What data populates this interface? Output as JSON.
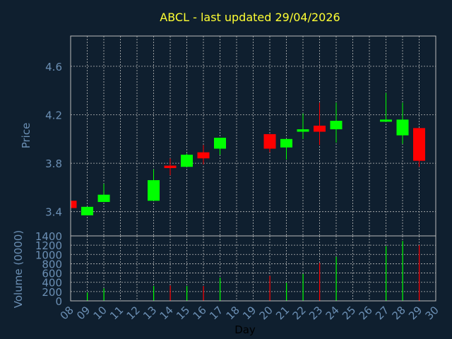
{
  "chart_data": {
    "type": "candlestick",
    "title": "ABCL - last updated 29/04/2026",
    "xlabel": "Day",
    "x_tick_labels": [
      "08",
      "09",
      "10",
      "11",
      "12",
      "13",
      "14",
      "15",
      "16",
      "17",
      "18",
      "19",
      "20",
      "21",
      "22",
      "23",
      "24",
      "25",
      "26",
      "27",
      "28",
      "29",
      "30"
    ],
    "price_panel": {
      "ylabel": "Price",
      "ylim": [
        3.2,
        4.85
      ],
      "y_ticks": [
        3.4,
        3.8,
        4.2,
        4.6
      ],
      "y_tick_labels": [
        "3.4",
        "3.8",
        "4.2",
        "4.6"
      ],
      "grid": true
    },
    "volume_panel": {
      "ylabel": "Volume (0000)",
      "ylim": [
        0,
        1400
      ],
      "y_ticks": [
        0,
        200,
        400,
        600,
        800,
        1000,
        1200,
        1400
      ],
      "y_tick_labels": [
        "0",
        "200",
        "400",
        "600",
        "800",
        "1000",
        "1200",
        "1400"
      ],
      "grid": true
    },
    "colors": {
      "up": "#00ff00",
      "down": "#ff0000",
      "background": "#0f1f2f",
      "title": "#ffff33",
      "axis_text": "#6b8fb4",
      "grid": "#bbbbbb"
    },
    "candles": [
      {
        "day": "08",
        "open": 3.49,
        "close": 3.43,
        "high": 3.49,
        "low": 3.43,
        "volume": 0
      },
      {
        "day": "09",
        "open": 3.37,
        "close": 3.44,
        "high": 3.44,
        "low": 3.37,
        "volume": 180
      },
      {
        "day": "10",
        "open": 3.48,
        "close": 3.54,
        "high": 3.63,
        "low": 3.48,
        "volume": 270
      },
      {
        "day": "13",
        "open": 3.49,
        "close": 3.66,
        "high": 3.75,
        "low": 3.49,
        "volume": 320
      },
      {
        "day": "14",
        "open": 3.78,
        "close": 3.76,
        "high": 3.84,
        "low": 3.7,
        "volume": 330
      },
      {
        "day": "15",
        "open": 3.77,
        "close": 3.87,
        "high": 3.88,
        "low": 3.77,
        "volume": 320
      },
      {
        "day": "16",
        "open": 3.89,
        "close": 3.84,
        "high": 3.95,
        "low": 3.79,
        "volume": 320
      },
      {
        "day": "17",
        "open": 3.92,
        "close": 4.01,
        "high": 4.01,
        "low": 3.87,
        "volume": 500
      },
      {
        "day": "20",
        "open": 4.04,
        "close": 3.92,
        "high": 4.04,
        "low": 3.89,
        "volume": 540
      },
      {
        "day": "21",
        "open": 3.93,
        "close": 4.0,
        "high": 4.0,
        "low": 3.83,
        "volume": 390
      },
      {
        "day": "22",
        "open": 4.06,
        "close": 4.08,
        "high": 4.21,
        "low": 4.0,
        "volume": 580
      },
      {
        "day": "23",
        "open": 4.11,
        "close": 4.06,
        "high": 4.3,
        "low": 3.95,
        "volume": 820
      },
      {
        "day": "24",
        "open": 4.08,
        "close": 4.15,
        "high": 4.3,
        "low": 3.97,
        "volume": 950
      },
      {
        "day": "27",
        "open": 4.15,
        "close": 4.16,
        "high": 4.38,
        "low": 4.14,
        "volume": 1180
      },
      {
        "day": "28",
        "open": 4.03,
        "close": 4.16,
        "high": 4.3,
        "low": 3.96,
        "volume": 1290
      },
      {
        "day": "29",
        "open": 4.09,
        "close": 3.82,
        "high": 4.09,
        "low": 3.77,
        "volume": 1200
      }
    ]
  }
}
